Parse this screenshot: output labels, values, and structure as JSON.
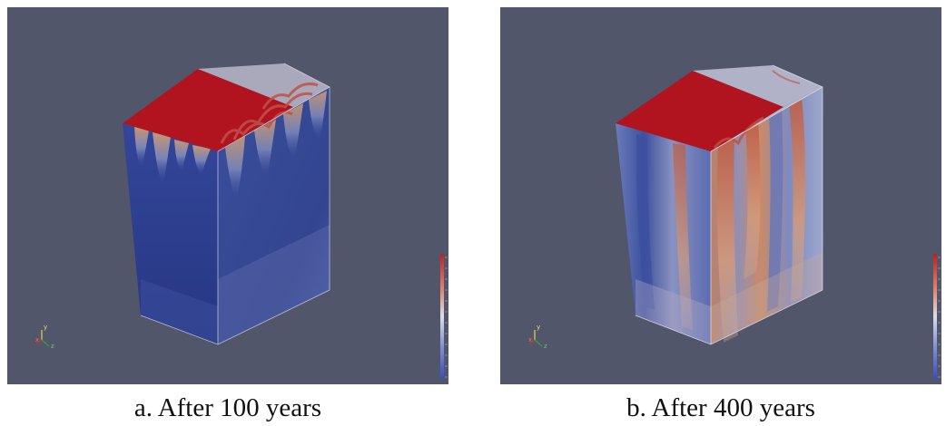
{
  "figure": {
    "panels": [
      {
        "caption": "a. After 100 years",
        "axis_labels": {
          "x": "x",
          "y": "y",
          "z": "z"
        },
        "colors": {
          "background": "#51566a",
          "high": "#b1141f",
          "low": "#2a3d8c",
          "mid": "#dcdce6"
        }
      },
      {
        "caption": "b. After 400 years",
        "axis_labels": {
          "x": "x",
          "y": "y",
          "z": "z"
        },
        "colors": {
          "background": "#51566a",
          "high": "#b1141f",
          "low": "#2a3d8c",
          "mid": "#dcdce6"
        }
      }
    ]
  }
}
